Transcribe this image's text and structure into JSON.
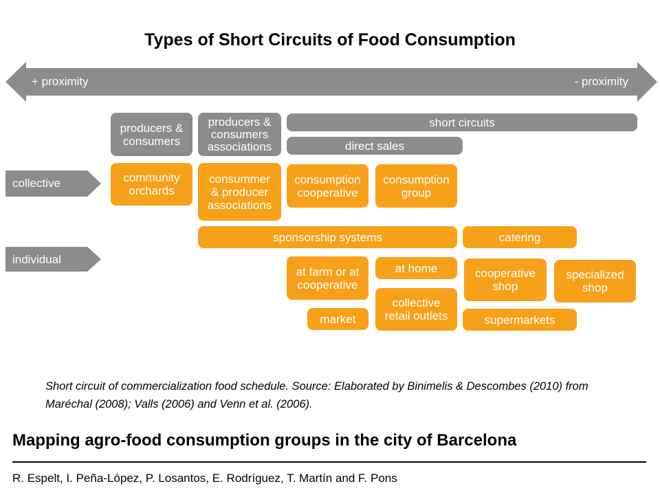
{
  "title": "Types of Short Circuits of Food Consumption",
  "proximity_axis": {
    "left_label": "+ proximity",
    "right_label": "- proximity"
  },
  "row_labels": {
    "collective": "collective",
    "individual": "individual"
  },
  "gray_boxes": {
    "producers_consumers": "producers &\nconsumers",
    "producers_consumers_associations": "producers &\nconsumers\nassociations",
    "short_circuits": "short circuits",
    "direct_sales": "direct sales"
  },
  "orange_boxes": {
    "community_orchards": "community\norchards",
    "consummer_producer_associations": "consummer\n& producer\nassociations",
    "consumption_cooperative": "consumption\ncooperative",
    "consumption_group": "consumption\ngroup",
    "sponsorship_systems": "sponsorship systems",
    "catering": "catering",
    "at_farm_or_cooperative": "at farm or at\ncooperative",
    "at_home": "at home",
    "cooperative_shop": "cooperative\nshop",
    "specialized_shop": "specialized\nshop",
    "market": "market",
    "collective_retail_outlets": "collective\nretail outlets",
    "supermarkets": "supermarkets"
  },
  "colors": {
    "gray": "#8c8c8c",
    "orange": "#f7a11a"
  },
  "caption": "Short circuit of commercialization food schedule. Source: Elaborated by Binimelis & Descombes (2010) from Maréchal (2008); Valls (2006) and Venn et al. (2006).",
  "subtitle": "Mapping agro-food consumption groups in the city of Barcelona",
  "authors": "R. Espelt, I. Peña-López, P. Losantos, E. Rodríguez, T. Martín and F. Pons"
}
